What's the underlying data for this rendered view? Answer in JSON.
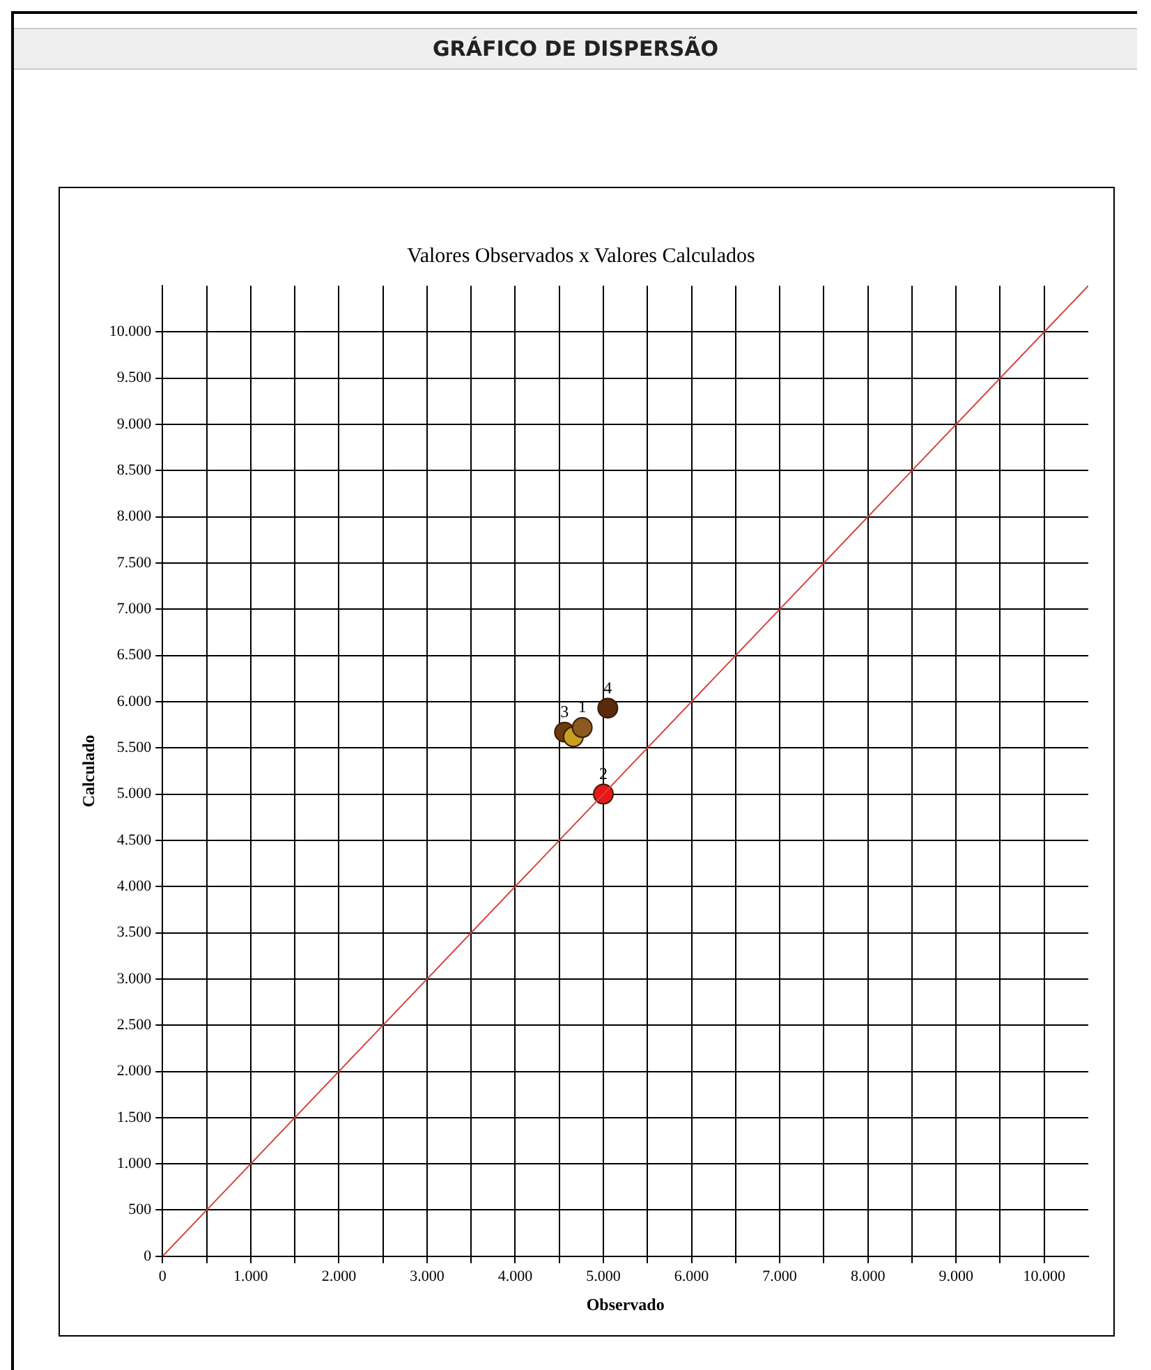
{
  "chart_data": {
    "type": "scatter",
    "title": "GRÁFICO DE DISPERSÃO",
    "subtitle": "Valores Observados x Valores Calculados",
    "xlabel": "Observado",
    "ylabel": "Calculado",
    "xlim": [
      0,
      10500
    ],
    "ylim": [
      0,
      10500
    ],
    "xticks": [
      0,
      {
        "value": 500,
        "label": null
      },
      {
        "value": 1000,
        "label": "1.000"
      },
      {
        "value": 1500,
        "label": null
      },
      {
        "value": 2000,
        "label": "2.000"
      },
      {
        "value": 2500,
        "label": null
      },
      {
        "value": 3000,
        "label": "3.000"
      },
      {
        "value": 3500,
        "label": null
      },
      {
        "value": 4000,
        "label": "4.000"
      },
      {
        "value": 4500,
        "label": null
      },
      {
        "value": 5000,
        "label": "5.000"
      },
      {
        "value": 5500,
        "label": null
      },
      {
        "value": 6000,
        "label": "6.000"
      },
      {
        "value": 6500,
        "label": null
      },
      {
        "value": 7000,
        "label": "7.000"
      },
      {
        "value": 7500,
        "label": null
      },
      {
        "value": 8000,
        "label": "8.000"
      },
      {
        "value": 8500,
        "label": null
      },
      {
        "value": 9000,
        "label": "9.000"
      },
      {
        "value": 9500,
        "label": null
      },
      {
        "value": 10000,
        "label": "10.000"
      }
    ],
    "yticks": [
      0,
      500,
      {
        "value": 1000,
        "label": "1.000"
      },
      {
        "value": 1500,
        "label": "1.500"
      },
      {
        "value": 2000,
        "label": "2.000"
      },
      {
        "value": 2500,
        "label": "2.500"
      },
      {
        "value": 3000,
        "label": "3.000"
      },
      {
        "value": 3500,
        "label": "3.500"
      },
      {
        "value": 4000,
        "label": "4.000"
      },
      {
        "value": 4500,
        "label": "4.500"
      },
      {
        "value": 5000,
        "label": "5.000"
      },
      {
        "value": 5500,
        "label": "5.500"
      },
      {
        "value": 6000,
        "label": "6.000"
      },
      {
        "value": 6500,
        "label": "6.500"
      },
      {
        "value": 7000,
        "label": "7.000"
      },
      {
        "value": 7500,
        "label": "7.500"
      },
      {
        "value": 8000,
        "label": "8.000"
      },
      {
        "value": 8500,
        "label": "8.500"
      },
      {
        "value": 9000,
        "label": "9.000"
      },
      {
        "value": 9500,
        "label": "9.500"
      },
      {
        "value": 10000,
        "label": "10.000"
      }
    ],
    "grid": true,
    "legend": false,
    "marker": "circle",
    "series": [
      {
        "type": "line",
        "color": "#d84040",
        "marker": "none",
        "line_style": "solid",
        "x": [
          0,
          10500
        ],
        "values": [
          0,
          10500
        ]
      },
      {
        "name": "2",
        "color": "#e81818",
        "x": [
          5000
        ],
        "values": [
          5000
        ]
      },
      {
        "name": "4",
        "color": "#5a2a0c",
        "x": [
          5050
        ],
        "values": [
          5930
        ]
      },
      {
        "name": "1",
        "color": "#8b5a1e",
        "x": [
          4760
        ],
        "values": [
          5720
        ]
      },
      {
        "color": "#c8a020",
        "x": [
          4660
        ],
        "values": [
          5620
        ]
      },
      {
        "name": "3",
        "color": "#6b3a10",
        "x": [
          4560
        ],
        "values": [
          5670
        ]
      }
    ]
  }
}
